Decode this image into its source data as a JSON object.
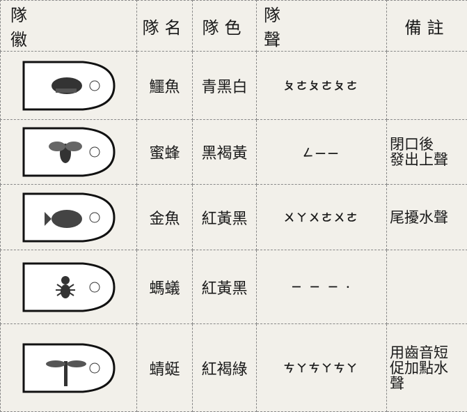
{
  "header": {
    "badge": "隊徽",
    "name": "隊名",
    "color": "隊色",
    "sound": "隊聲",
    "note": "備註"
  },
  "table": {
    "rows": [
      {
        "name": "鱷魚",
        "color": "青黑白",
        "sound": "ㄆㄜㄆㄜㄆㄜ"
      },
      {
        "name": "蜜蜂",
        "color": "黑褐黃",
        "sound": "ㄥ——",
        "note": [
          "閉口後",
          "發出上聲"
        ]
      },
      {
        "name": "金魚",
        "color": "紅黃黑",
        "sound": "ㄨㄚㄨㄜㄨㄜ",
        "note": [
          "尾擾水聲"
        ]
      },
      {
        "name": "螞蟻",
        "color": "紅黃黑",
        "sound": "ㄧ ㄧ ㄧ ·"
      },
      {
        "name": "蜻蜓",
        "color": "紅褐綠",
        "sound": "ㄘㄚㄘㄚㄘㄚ",
        "note": [
          "用齒音短",
          "促加點水",
          "聲"
        ]
      }
    ]
  }
}
